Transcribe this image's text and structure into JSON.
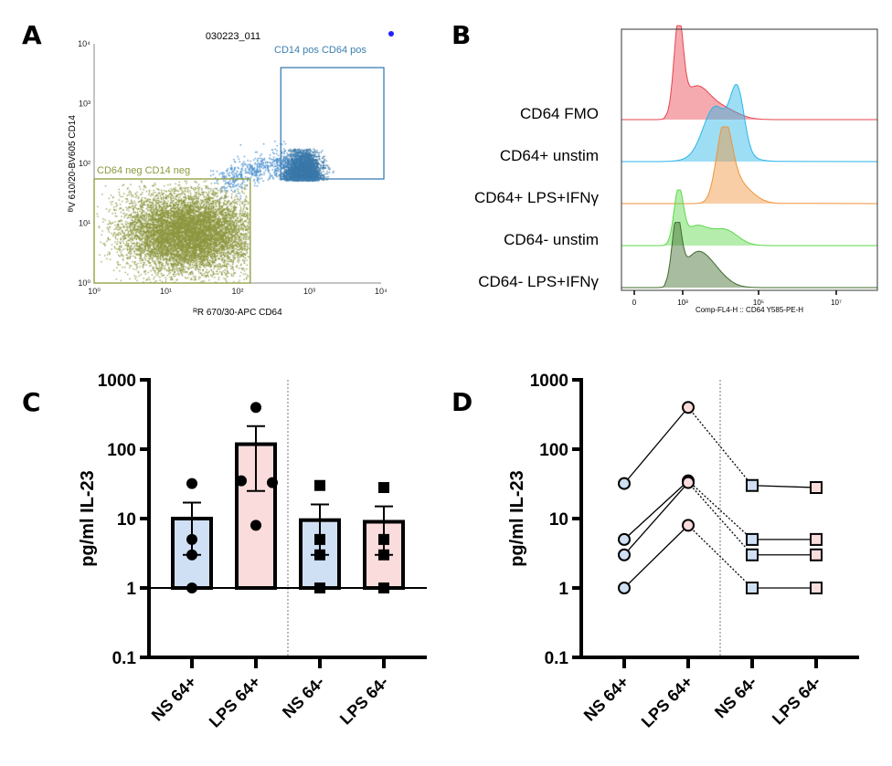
{
  "panels": {
    "A": {
      "label": "A"
    },
    "B": {
      "label": "B"
    },
    "C": {
      "label": "C"
    },
    "D": {
      "label": "D"
    }
  },
  "chart_data": [
    {
      "panel": "A",
      "type": "scatter",
      "title": "030223_011",
      "xlabel": "ᴿR 670/30-APC CD64",
      "ylabel": "ᴮV 610/20-BV605 CD14",
      "xscale": "log",
      "yscale": "log",
      "xlim": [
        1,
        10000
      ],
      "ylim": [
        1,
        10000
      ],
      "xticks": [
        "10⁰",
        "10¹",
        "10²",
        "10³",
        "10⁴"
      ],
      "yticks": [
        "10⁰",
        "10¹",
        "10²",
        "10³",
        "10⁴"
      ],
      "gates": [
        {
          "name": "CD14 pos CD64 pos",
          "color": "#3a7fb0",
          "x_range": [
            400,
            11000
          ],
          "y_range": [
            55,
            4000
          ]
        },
        {
          "name": "CD64 neg CD14 neg",
          "color": "#8a9a3c",
          "x_range": [
            1,
            150
          ],
          "y_range": [
            1,
            55
          ]
        }
      ],
      "colors": {
        "positive": "#3a78a8",
        "negative": "#8c963f"
      }
    },
    {
      "panel": "B",
      "type": "area",
      "xlabel": "Comp-FL4-H :: CD64 Y585-PE-H",
      "xticks": [
        "0",
        "10³",
        "10⁵",
        "10⁷"
      ],
      "series": [
        {
          "name": "CD64 FMO",
          "color": "#e8434f"
        },
        {
          "name": "CD64+ unstim",
          "color": "#29b5e8"
        },
        {
          "name": "CD64+ LPS+IFNγ",
          "color": "#f0923a"
        },
        {
          "name": "CD64- unstim",
          "color": "#5bd84a"
        },
        {
          "name": "CD64- LPS+IFNγ",
          "color": "#3d6b2a"
        }
      ]
    },
    {
      "panel": "C",
      "type": "bar",
      "ylabel": "pg/ml IL-23",
      "yscale": "log",
      "ylim": [
        0.1,
        1000
      ],
      "yticks": [
        "1000",
        "100",
        "10",
        "1",
        "0.1"
      ],
      "categories": [
        "NS 64+",
        "LPS 64+",
        "NS 64-",
        "LPS 64-"
      ],
      "values": [
        10,
        118,
        9.5,
        9
      ],
      "error_upper": [
        17,
        215,
        16,
        15
      ],
      "error_lower": [
        3,
        25,
        3,
        3
      ],
      "points": [
        [
          32,
          5,
          3,
          1
        ],
        [
          400,
          35,
          33,
          8
        ],
        [
          30,
          5,
          3,
          1
        ],
        [
          28,
          5,
          3,
          1
        ]
      ],
      "markers": [
        "circle",
        "circle",
        "square",
        "square"
      ],
      "colors": [
        "#cfe0f5",
        "#fbdcdc",
        "#cfe0f5",
        "#fbdcdc"
      ]
    },
    {
      "panel": "D",
      "type": "line",
      "ylabel": "pg/ml IL-23",
      "yscale": "log",
      "ylim": [
        0.1,
        1000
      ],
      "yticks": [
        "1000",
        "100",
        "10",
        "1",
        "0.1"
      ],
      "categories": [
        "NS 64+",
        "LPS 64+",
        "NS 64-",
        "LPS 64-"
      ],
      "series": [
        {
          "values": [
            32,
            400,
            30,
            28
          ]
        },
        {
          "values": [
            5,
            35,
            5,
            5
          ]
        },
        {
          "values": [
            3,
            33,
            3,
            3
          ]
        },
        {
          "values": [
            1,
            8,
            1,
            1
          ]
        }
      ],
      "markers": [
        "circle",
        "circle",
        "square",
        "square"
      ],
      "colors": [
        "#cfe0f5",
        "#fbdcdc",
        "#cfe0f5",
        "#fbdcdc"
      ]
    }
  ]
}
